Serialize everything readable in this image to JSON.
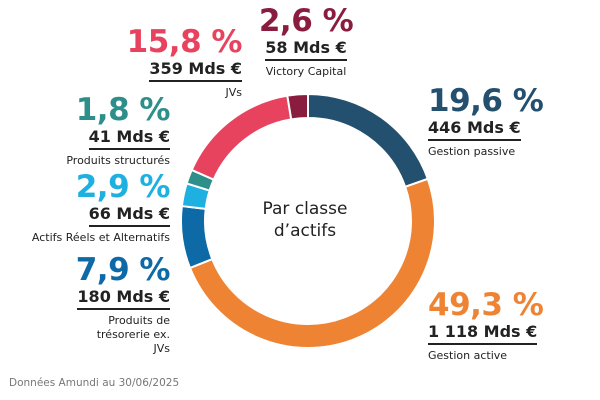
{
  "chart_data": {
    "type": "donut",
    "center_label": [
      "Par classe",
      "d’actifs"
    ],
    "source": "Données Amundi au 30/06/2025",
    "segments": [
      {
        "name": "Gestion passive",
        "percent_label": "19,6 %",
        "amount_label": "446 Mds €",
        "value": 19.6,
        "color": "#24506f"
      },
      {
        "name": "Gestion active",
        "percent_label": "49,3 %",
        "amount_label": "1 118 Mds €",
        "value": 49.3,
        "color": "#ee8433"
      },
      {
        "name": "Produits de trésorerie ex. JVs",
        "percent_label": "7,9 %",
        "amount_label": "180 Mds €",
        "value": 7.9,
        "color": "#0d6aa6"
      },
      {
        "name": "Actifs Réels et Alternatifs",
        "percent_label": "2,9 %",
        "amount_label": "66 Mds €",
        "value": 2.9,
        "color": "#1fb0e2"
      },
      {
        "name": "Produits structurés",
        "percent_label": "1,8 %",
        "amount_label": "41 Mds €",
        "value": 1.8,
        "color": "#2e8f8a"
      },
      {
        "name": "JVs",
        "percent_label": "15,8 %",
        "amount_label": "359 Mds €",
        "value": 15.8,
        "color": "#e8435e"
      },
      {
        "name": "Victory Capital",
        "percent_label": "2,6 %",
        "amount_label": "58 Mds €",
        "value": 2.6,
        "color": "#8a1d3f"
      }
    ]
  }
}
